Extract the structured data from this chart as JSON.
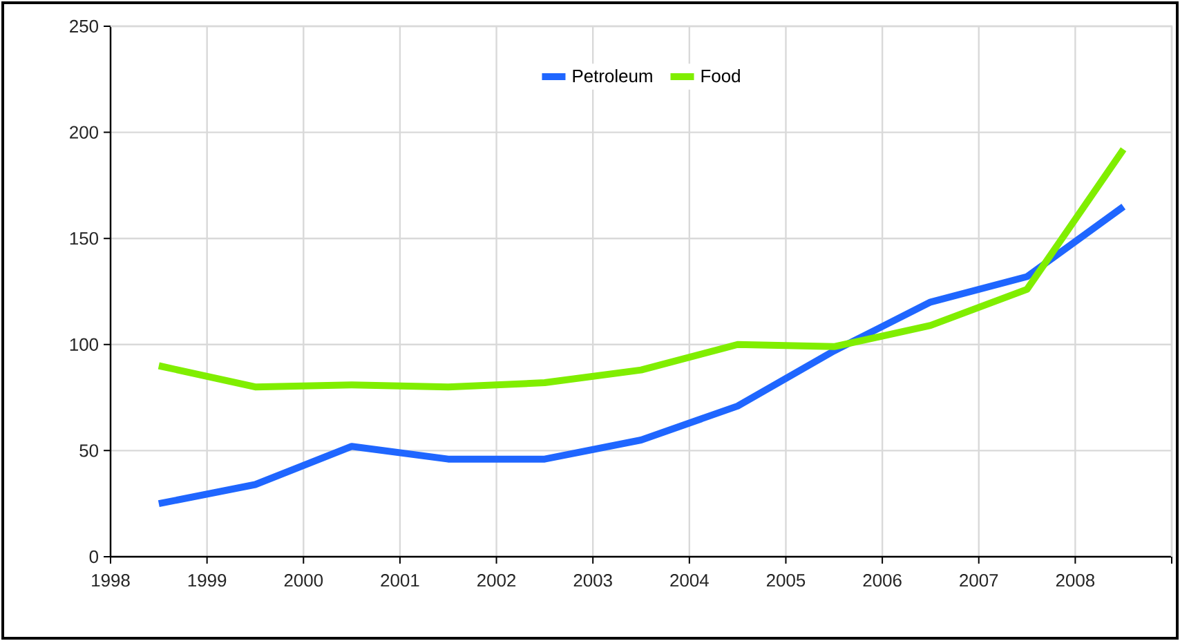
{
  "chart_data": {
    "type": "line",
    "x": [
      1998.5,
      1999.5,
      2000.5,
      2001.5,
      2002.5,
      2003.5,
      2004.5,
      2005.5,
      2006.5,
      2007.5,
      2008.5
    ],
    "series": [
      {
        "name": "Petroleum",
        "color": "#1f66ff",
        "values": [
          25,
          34,
          52,
          46,
          46,
          55,
          71,
          97,
          120,
          132,
          165
        ]
      },
      {
        "name": "Food",
        "color": "#80ee00",
        "values": [
          90,
          80,
          81,
          80,
          82,
          88,
          100,
          99,
          109,
          126,
          192
        ]
      }
    ],
    "xlim": [
      1998,
      2009
    ],
    "xticks": [
      1998,
      1999,
      2000,
      2001,
      2002,
      2003,
      2004,
      2005,
      2006,
      2007,
      2008,
      {
        "value": 2009,
        "label": null
      }
    ],
    "ylim": [
      0,
      250
    ],
    "yticks": [
      0,
      50,
      100,
      150,
      200,
      250
    ],
    "grid": true,
    "legend": "top"
  }
}
